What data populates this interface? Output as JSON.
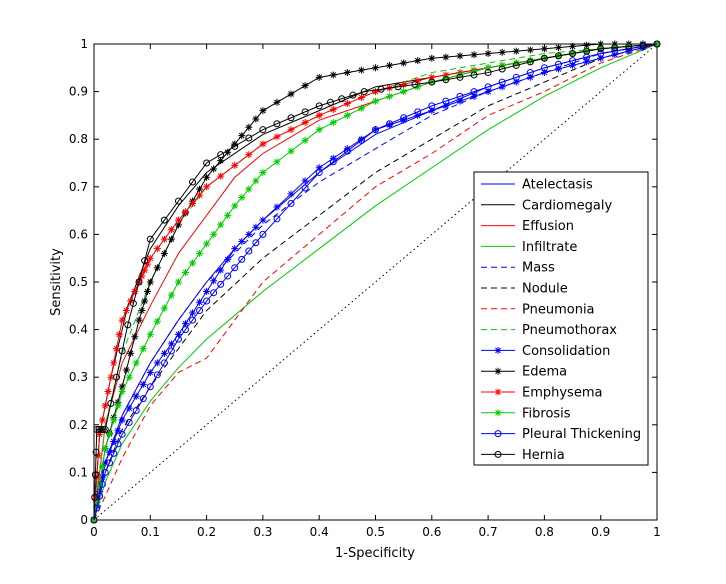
{
  "chart_data": {
    "type": "line",
    "title": "",
    "xlabel": "1-Specificity",
    "ylabel": "Sensitivity",
    "xlim": [
      0,
      1
    ],
    "ylim": [
      0,
      1
    ],
    "xticks": [
      "0",
      "0.1",
      "0.2",
      "0.3",
      "0.4",
      "0.5",
      "0.6",
      "0.7",
      "0.8",
      "0.9",
      "1"
    ],
    "yticks": [
      "0",
      "0.1",
      "0.2",
      "0.3",
      "0.4",
      "0.5",
      "0.6",
      "0.7",
      "0.8",
      "0.9",
      "1"
    ],
    "legend_position": "center-right",
    "diagonal_reference": true,
    "series": [
      {
        "name": "Atelectasis",
        "color": "#0000ff",
        "dash": "solid",
        "marker": "none",
        "x": [
          0,
          0.02,
          0.05,
          0.1,
          0.15,
          0.2,
          0.25,
          0.3,
          0.4,
          0.5,
          0.6,
          0.7,
          0.8,
          0.9,
          1
        ],
        "y": [
          0,
          0.12,
          0.22,
          0.33,
          0.42,
          0.5,
          0.57,
          0.63,
          0.73,
          0.81,
          0.86,
          0.91,
          0.95,
          0.98,
          1
        ]
      },
      {
        "name": "Cardiomegaly",
        "color": "#000000",
        "dash": "solid",
        "marker": "none",
        "x": [
          0,
          0.01,
          0.03,
          0.06,
          0.1,
          0.15,
          0.2,
          0.3,
          0.4,
          0.5,
          0.6,
          0.7,
          0.8,
          0.9,
          1
        ],
        "y": [
          0,
          0.18,
          0.3,
          0.45,
          0.57,
          0.66,
          0.73,
          0.81,
          0.86,
          0.91,
          0.93,
          0.95,
          0.97,
          0.99,
          1
        ]
      },
      {
        "name": "Effusion",
        "color": "#ff0000",
        "dash": "solid",
        "marker": "none",
        "x": [
          0,
          0.02,
          0.05,
          0.1,
          0.15,
          0.2,
          0.25,
          0.3,
          0.4,
          0.5,
          0.6,
          0.7,
          0.8,
          0.9,
          1
        ],
        "y": [
          0,
          0.2,
          0.33,
          0.45,
          0.56,
          0.64,
          0.72,
          0.77,
          0.84,
          0.88,
          0.92,
          0.95,
          0.97,
          0.99,
          1
        ]
      },
      {
        "name": "Infiltrate",
        "color": "#00cc00",
        "dash": "solid",
        "marker": "none",
        "x": [
          0,
          0.02,
          0.05,
          0.1,
          0.15,
          0.2,
          0.3,
          0.4,
          0.5,
          0.6,
          0.7,
          0.8,
          0.9,
          1
        ],
        "y": [
          0,
          0.08,
          0.16,
          0.25,
          0.32,
          0.38,
          0.48,
          0.57,
          0.66,
          0.74,
          0.82,
          0.89,
          0.95,
          1
        ]
      },
      {
        "name": "Mass",
        "color": "#0000ff",
        "dash": "dash",
        "marker": "none",
        "x": [
          0,
          0.02,
          0.05,
          0.1,
          0.15,
          0.2,
          0.3,
          0.4,
          0.5,
          0.6,
          0.7,
          0.8,
          0.9,
          1
        ],
        "y": [
          0,
          0.12,
          0.22,
          0.33,
          0.42,
          0.5,
          0.62,
          0.71,
          0.78,
          0.85,
          0.9,
          0.94,
          0.98,
          1
        ]
      },
      {
        "name": "Nodule",
        "color": "#000000",
        "dash": "dash",
        "marker": "none",
        "x": [
          0,
          0.02,
          0.05,
          0.1,
          0.15,
          0.2,
          0.3,
          0.4,
          0.5,
          0.6,
          0.7,
          0.8,
          0.9,
          1
        ],
        "y": [
          0,
          0.1,
          0.19,
          0.28,
          0.36,
          0.44,
          0.55,
          0.64,
          0.73,
          0.8,
          0.87,
          0.92,
          0.97,
          1
        ]
      },
      {
        "name": "Pneumonia",
        "color": "#ff0000",
        "dash": "dash",
        "marker": "none",
        "x": [
          0,
          0.02,
          0.05,
          0.1,
          0.15,
          0.2,
          0.25,
          0.3,
          0.4,
          0.5,
          0.6,
          0.7,
          0.8,
          0.9,
          1
        ],
        "y": [
          0,
          0.05,
          0.13,
          0.24,
          0.31,
          0.34,
          0.42,
          0.5,
          0.6,
          0.7,
          0.77,
          0.85,
          0.9,
          0.96,
          1
        ]
      },
      {
        "name": "Pneumothorax",
        "color": "#00cc00",
        "dash": "dash",
        "marker": "none",
        "x": [
          0,
          0.02,
          0.05,
          0.1,
          0.15,
          0.2,
          0.3,
          0.4,
          0.5,
          0.6,
          0.7,
          0.8,
          0.9,
          1
        ],
        "y": [
          0,
          0.2,
          0.35,
          0.5,
          0.62,
          0.7,
          0.79,
          0.85,
          0.9,
          0.94,
          0.96,
          0.98,
          0.99,
          1
        ]
      },
      {
        "name": "Consolidation",
        "color": "#0000ff",
        "dash": "solid",
        "marker": "star",
        "x": [
          0,
          0.02,
          0.05,
          0.1,
          0.15,
          0.2,
          0.25,
          0.3,
          0.4,
          0.5,
          0.6,
          0.7,
          0.8,
          0.9,
          1
        ],
        "y": [
          0,
          0.12,
          0.21,
          0.31,
          0.39,
          0.48,
          0.57,
          0.63,
          0.74,
          0.82,
          0.86,
          0.9,
          0.94,
          0.97,
          1
        ]
      },
      {
        "name": "Edema",
        "color": "#000000",
        "dash": "solid",
        "marker": "star",
        "x": [
          0,
          0.02,
          0.05,
          0.08,
          0.1,
          0.15,
          0.2,
          0.25,
          0.3,
          0.4,
          0.5,
          0.6,
          0.7,
          0.8,
          0.9,
          1
        ],
        "y": [
          0,
          0.15,
          0.28,
          0.42,
          0.5,
          0.62,
          0.72,
          0.79,
          0.86,
          0.93,
          0.95,
          0.97,
          0.98,
          0.99,
          1,
          1
        ]
      },
      {
        "name": "Emphysema",
        "color": "#ff0000",
        "dash": "solid",
        "marker": "star",
        "x": [
          0,
          0.01,
          0.03,
          0.05,
          0.08,
          0.1,
          0.15,
          0.2,
          0.3,
          0.4,
          0.5,
          0.6,
          0.7,
          0.8,
          0.9,
          1
        ],
        "y": [
          0,
          0.18,
          0.3,
          0.42,
          0.5,
          0.55,
          0.63,
          0.7,
          0.79,
          0.85,
          0.9,
          0.93,
          0.95,
          0.97,
          0.99,
          1
        ]
      },
      {
        "name": "Fibrosis",
        "color": "#00cc00",
        "dash": "solid",
        "marker": "star",
        "x": [
          0,
          0.02,
          0.05,
          0.1,
          0.15,
          0.2,
          0.25,
          0.3,
          0.4,
          0.5,
          0.6,
          0.7,
          0.8,
          0.9,
          1
        ],
        "y": [
          0,
          0.15,
          0.27,
          0.39,
          0.5,
          0.58,
          0.66,
          0.73,
          0.82,
          0.88,
          0.92,
          0.95,
          0.97,
          0.99,
          1
        ]
      },
      {
        "name": "Pleural Thickening",
        "color": "#0000ff",
        "dash": "solid",
        "marker": "circle",
        "x": [
          0,
          0.02,
          0.05,
          0.1,
          0.15,
          0.2,
          0.25,
          0.3,
          0.4,
          0.5,
          0.6,
          0.7,
          0.8,
          0.9,
          1
        ],
        "y": [
          0,
          0.1,
          0.18,
          0.28,
          0.38,
          0.46,
          0.53,
          0.6,
          0.73,
          0.82,
          0.87,
          0.91,
          0.95,
          0.98,
          1
        ]
      },
      {
        "name": "Hernia",
        "color": "#000000",
        "dash": "solid",
        "marker": "circle",
        "x": [
          0,
          0.005,
          0.02,
          0.06,
          0.1,
          0.2,
          0.3,
          0.4,
          0.48,
          0.6,
          0.7,
          0.8,
          0.9,
          1
        ],
        "y": [
          0,
          0.19,
          0.19,
          0.41,
          0.59,
          0.75,
          0.82,
          0.87,
          0.9,
          0.92,
          0.94,
          0.97,
          0.99,
          1
        ]
      }
    ]
  }
}
